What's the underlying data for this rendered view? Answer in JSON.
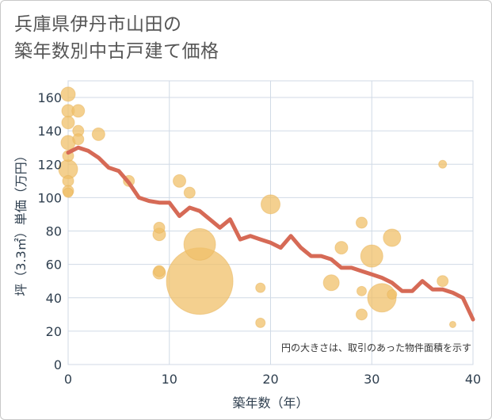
{
  "title_line1": "兵庫県伊丹市山田の",
  "title_line2": "築年数別中古戸建て価格",
  "chart_data": {
    "type": "scatter",
    "title": "兵庫県伊丹市山田の築年数別中古戸建て価格",
    "xlabel": "築年数（年）",
    "ylabel": "坪（3.3㎡）単価（万円）",
    "xlim": [
      0,
      40
    ],
    "ylim": [
      0,
      170
    ],
    "x_ticks": [
      0,
      10,
      20,
      30,
      40
    ],
    "y_ticks": [
      0,
      20,
      40,
      60,
      80,
      100,
      120,
      140,
      160
    ],
    "grid": true,
    "note": "円の大きさは、取引のあった物件面積を示す",
    "colors": {
      "bubble": "#f0c06a",
      "trend": "#d66a56",
      "grid": "#d0dae6",
      "text": "#2f3f4f"
    },
    "bubbles": [
      {
        "x": 0,
        "y": 162,
        "s": 9
      },
      {
        "x": 0,
        "y": 152,
        "s": 8
      },
      {
        "x": 0,
        "y": 145,
        "s": 8
      },
      {
        "x": 0,
        "y": 133,
        "s": 9
      },
      {
        "x": 0,
        "y": 125,
        "s": 7
      },
      {
        "x": 0,
        "y": 110,
        "s": 7
      },
      {
        "x": 0,
        "y": 104,
        "s": 7
      },
      {
        "x": 0,
        "y": 103,
        "s": 6
      },
      {
        "x": 0,
        "y": 117,
        "s": 12
      },
      {
        "x": 1,
        "y": 152,
        "s": 8
      },
      {
        "x": 1,
        "y": 140,
        "s": 7
      },
      {
        "x": 1,
        "y": 135,
        "s": 7
      },
      {
        "x": 3,
        "y": 138,
        "s": 8
      },
      {
        "x": 6,
        "y": 110,
        "s": 7
      },
      {
        "x": 9,
        "y": 82,
        "s": 7
      },
      {
        "x": 9,
        "y": 78,
        "s": 8
      },
      {
        "x": 9,
        "y": 56,
        "s": 7
      },
      {
        "x": 9,
        "y": 55,
        "s": 8
      },
      {
        "x": 11,
        "y": 110,
        "s": 8
      },
      {
        "x": 12,
        "y": 103,
        "s": 7
      },
      {
        "x": 13,
        "y": 72,
        "s": 20
      },
      {
        "x": 13,
        "y": 50,
        "s": 42
      },
      {
        "x": 19,
        "y": 46,
        "s": 6
      },
      {
        "x": 19,
        "y": 25,
        "s": 6
      },
      {
        "x": 20,
        "y": 96,
        "s": 12
      },
      {
        "x": 26,
        "y": 49,
        "s": 10
      },
      {
        "x": 27,
        "y": 70,
        "s": 8
      },
      {
        "x": 29,
        "y": 85,
        "s": 7
      },
      {
        "x": 29,
        "y": 44,
        "s": 6
      },
      {
        "x": 29,
        "y": 30,
        "s": 7
      },
      {
        "x": 30,
        "y": 65,
        "s": 14
      },
      {
        "x": 31,
        "y": 40,
        "s": 18
      },
      {
        "x": 32,
        "y": 76,
        "s": 11
      },
      {
        "x": 32,
        "y": 42,
        "s": 6
      },
      {
        "x": 37,
        "y": 120,
        "s": 5
      },
      {
        "x": 37,
        "y": 50,
        "s": 7
      },
      {
        "x": 38,
        "y": 24,
        "s": 4
      }
    ],
    "trend": {
      "x": [
        0,
        1,
        2,
        3,
        4,
        5,
        6,
        7,
        8,
        9,
        10,
        11,
        12,
        13,
        14,
        15,
        16,
        17,
        18,
        19,
        20,
        21,
        22,
        23,
        24,
        25,
        26,
        27,
        28,
        29,
        30,
        31,
        32,
        33,
        34,
        35,
        36,
        37,
        38,
        39,
        40
      ],
      "y": [
        127,
        130,
        128,
        124,
        118,
        116,
        109,
        100,
        98,
        97,
        97,
        89,
        94,
        92,
        87,
        82,
        87,
        75,
        77,
        75,
        73,
        70,
        77,
        70,
        65,
        65,
        63,
        58,
        58,
        56,
        54,
        52,
        49,
        44,
        44,
        50,
        45,
        45,
        43,
        40,
        27
      ]
    }
  }
}
